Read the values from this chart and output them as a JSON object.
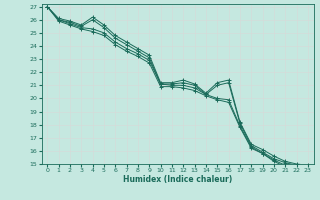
{
  "xlabel": "Humidex (Indice chaleur)",
  "xlim": [
    -0.5,
    23.5
  ],
  "ylim": [
    15,
    27.2
  ],
  "yticks": [
    15,
    16,
    17,
    18,
    19,
    20,
    21,
    22,
    23,
    24,
    25,
    26,
    27
  ],
  "xticks": [
    0,
    1,
    2,
    3,
    4,
    5,
    6,
    7,
    8,
    9,
    10,
    11,
    12,
    13,
    14,
    15,
    16,
    17,
    18,
    19,
    20,
    21,
    22,
    23
  ],
  "background_color": "#c5e8e0",
  "grid_color": "#e8e8e8",
  "line_color": "#1a6b5a",
  "lines_y": [
    [
      27.0,
      26.1,
      25.9,
      25.6,
      26.2,
      25.6,
      24.8,
      24.3,
      23.8,
      23.3,
      21.2,
      21.2,
      21.4,
      21.1,
      20.4,
      21.2,
      21.4,
      18.2,
      16.5,
      16.1,
      15.6,
      15.2,
      15.0,
      14.9
    ],
    [
      27.0,
      26.0,
      25.8,
      25.5,
      26.0,
      25.4,
      24.6,
      24.1,
      23.6,
      23.1,
      21.1,
      21.1,
      21.2,
      21.0,
      20.3,
      21.0,
      21.2,
      18.1,
      16.4,
      15.9,
      15.4,
      15.1,
      14.9,
      14.8
    ],
    [
      27.0,
      26.0,
      25.7,
      25.4,
      25.3,
      25.0,
      24.3,
      23.8,
      23.4,
      22.9,
      21.1,
      21.0,
      21.0,
      20.8,
      20.3,
      20.0,
      19.9,
      17.9,
      16.3,
      15.8,
      15.3,
      14.9,
      14.8,
      14.7
    ],
    [
      27.0,
      25.9,
      25.6,
      25.3,
      25.1,
      24.8,
      24.1,
      23.6,
      23.2,
      22.7,
      20.9,
      20.9,
      20.8,
      20.6,
      20.2,
      19.9,
      19.7,
      17.8,
      16.2,
      15.8,
      15.2,
      14.8,
      14.7,
      14.6
    ]
  ]
}
